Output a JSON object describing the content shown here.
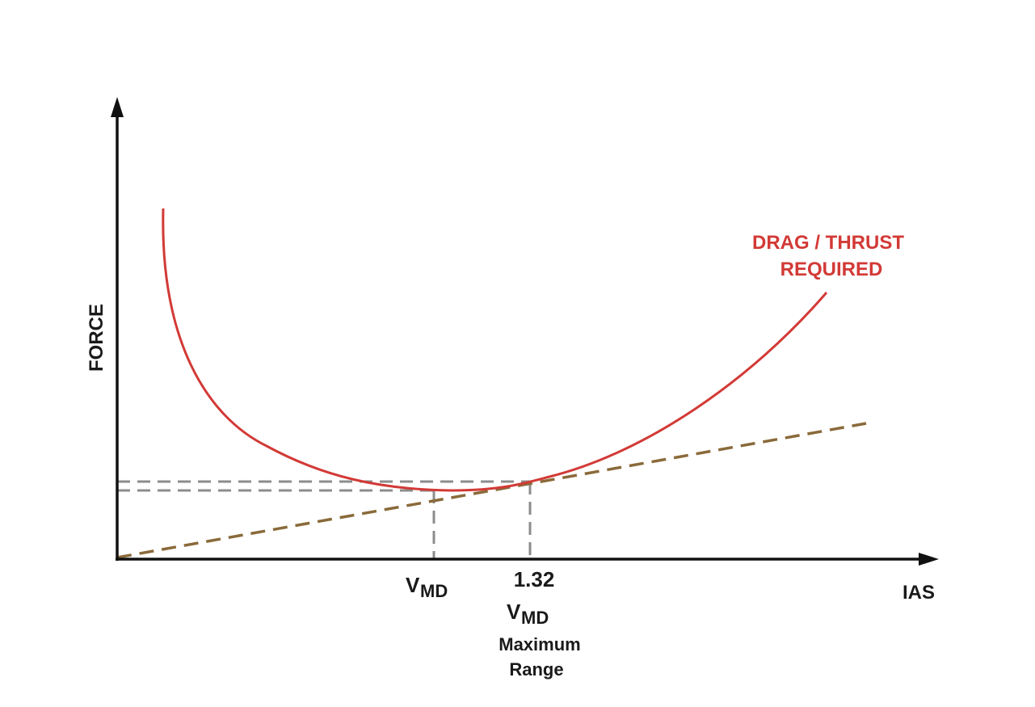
{
  "diagram": {
    "y_axis_label": "FORCE",
    "x_axis_label": "IAS",
    "curve_label_line1": "DRAG / THRUST",
    "curve_label_line2": "REQUIRED",
    "vmd_label": {
      "main": "V",
      "sub": "MD"
    },
    "range_label": {
      "factor": "1.32",
      "main": "V",
      "sub": "MD",
      "line3": "Maximum",
      "line4": "Range"
    },
    "colors": {
      "axis": "#111111",
      "drag_curve": "#d23a36",
      "tangent_line": "#8a6a3a",
      "guide_lines": "#8c8c8c"
    }
  }
}
